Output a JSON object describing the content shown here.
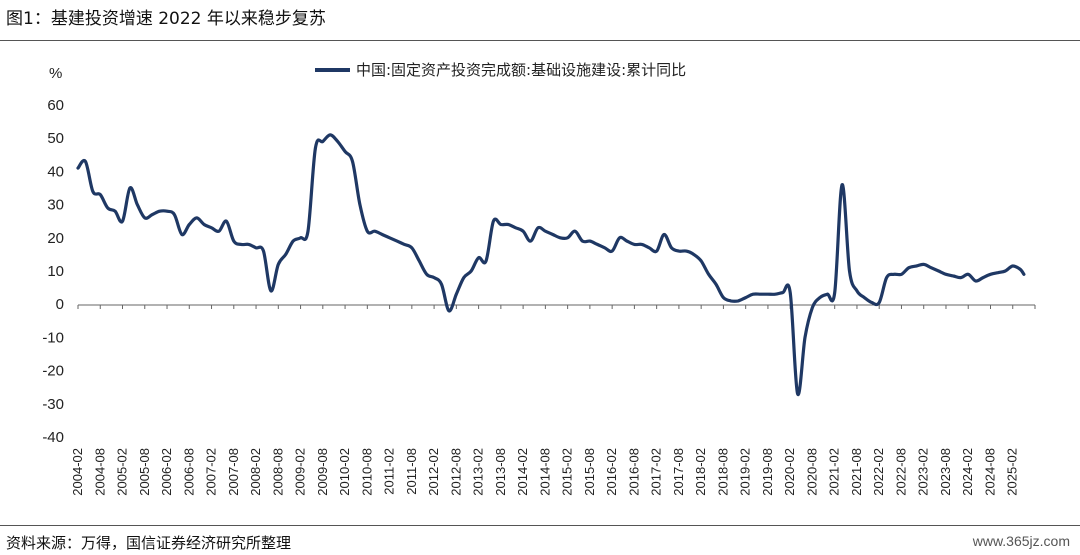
{
  "title": "图1：基建投资增速 2022 年以来稳步复苏",
  "source": "资料来源：万得，国信证券经济研究所整理",
  "watermark": "www.365jz.com",
  "chart_data": {
    "type": "line",
    "unit": "%",
    "ylim": [
      -40,
      60
    ],
    "yticks": [
      60,
      50,
      40,
      30,
      20,
      10,
      0,
      -10,
      -20,
      -30,
      -40
    ],
    "xticks": [
      "2004-02",
      "2004-08",
      "2005-02",
      "2005-08",
      "2006-02",
      "2006-08",
      "2007-02",
      "2007-08",
      "2008-02",
      "2008-08",
      "2009-02",
      "2009-08",
      "2010-02",
      "2010-08",
      "2011-02",
      "2011-08",
      "2012-02",
      "2012-08",
      "2013-02",
      "2013-08",
      "2014-02",
      "2014-08",
      "2015-02",
      "2015-08",
      "2016-02",
      "2016-08",
      "2017-02",
      "2017-08",
      "2018-02",
      "2018-08",
      "2019-02",
      "2019-08",
      "2020-02",
      "2020-08",
      "2021-02",
      "2021-08",
      "2022-02",
      "2022-08",
      "2023-02",
      "2023-08",
      "2024-02",
      "2024-08",
      "2025-02"
    ],
    "legend_position": "top-center",
    "grid": false,
    "colors": {
      "line": "#1f3864"
    },
    "series": [
      {
        "name": "中国:固定资产投资完成额:基础设施建设:累计同比",
        "points": [
          [
            "2004-02",
            41
          ],
          [
            "2004-04",
            43
          ],
          [
            "2004-06",
            34
          ],
          [
            "2004-08",
            33
          ],
          [
            "2004-10",
            29
          ],
          [
            "2004-12",
            28
          ],
          [
            "2005-02",
            25
          ],
          [
            "2005-04",
            35
          ],
          [
            "2005-06",
            30
          ],
          [
            "2005-08",
            26
          ],
          [
            "2005-10",
            27
          ],
          [
            "2005-12",
            28
          ],
          [
            "2006-02",
            28
          ],
          [
            "2006-04",
            27
          ],
          [
            "2006-06",
            21
          ],
          [
            "2006-08",
            24
          ],
          [
            "2006-10",
            26
          ],
          [
            "2006-12",
            24
          ],
          [
            "2007-02",
            23
          ],
          [
            "2007-04",
            22
          ],
          [
            "2007-06",
            25
          ],
          [
            "2007-08",
            19
          ],
          [
            "2007-10",
            18
          ],
          [
            "2007-12",
            18
          ],
          [
            "2008-02",
            17
          ],
          [
            "2008-04",
            16
          ],
          [
            "2008-06",
            4
          ],
          [
            "2008-08",
            12
          ],
          [
            "2008-10",
            15
          ],
          [
            "2008-12",
            19
          ],
          [
            "2009-02",
            20
          ],
          [
            "2009-04",
            22
          ],
          [
            "2009-06",
            47
          ],
          [
            "2009-08",
            49
          ],
          [
            "2009-10",
            51
          ],
          [
            "2009-12",
            49
          ],
          [
            "2010-02",
            46
          ],
          [
            "2010-04",
            43
          ],
          [
            "2010-06",
            30
          ],
          [
            "2010-08",
            22
          ],
          [
            "2010-10",
            22
          ],
          [
            "2010-12",
            21
          ],
          [
            "2011-02",
            20
          ],
          [
            "2011-04",
            19
          ],
          [
            "2011-06",
            18
          ],
          [
            "2011-08",
            17
          ],
          [
            "2011-10",
            13
          ],
          [
            "2011-12",
            9
          ],
          [
            "2012-02",
            8
          ],
          [
            "2012-04",
            6
          ],
          [
            "2012-06",
            -2
          ],
          [
            "2012-08",
            3
          ],
          [
            "2012-10",
            8
          ],
          [
            "2012-12",
            10
          ],
          [
            "2013-02",
            14
          ],
          [
            "2013-04",
            13
          ],
          [
            "2013-06",
            25
          ],
          [
            "2013-08",
            24
          ],
          [
            "2013-10",
            24
          ],
          [
            "2013-12",
            23
          ],
          [
            "2014-02",
            22
          ],
          [
            "2014-04",
            19
          ],
          [
            "2014-06",
            23
          ],
          [
            "2014-08",
            22
          ],
          [
            "2014-10",
            21
          ],
          [
            "2014-12",
            20
          ],
          [
            "2015-02",
            20
          ],
          [
            "2015-04",
            22
          ],
          [
            "2015-06",
            19
          ],
          [
            "2015-08",
            19
          ],
          [
            "2015-10",
            18
          ],
          [
            "2015-12",
            17
          ],
          [
            "2016-02",
            16
          ],
          [
            "2016-04",
            20
          ],
          [
            "2016-06",
            19
          ],
          [
            "2016-08",
            18
          ],
          [
            "2016-10",
            18
          ],
          [
            "2016-12",
            17
          ],
          [
            "2017-02",
            16
          ],
          [
            "2017-04",
            21
          ],
          [
            "2017-06",
            17
          ],
          [
            "2017-08",
            16
          ],
          [
            "2017-10",
            16
          ],
          [
            "2017-12",
            15
          ],
          [
            "2018-02",
            13
          ],
          [
            "2018-04",
            9
          ],
          [
            "2018-06",
            6
          ],
          [
            "2018-08",
            2
          ],
          [
            "2018-10",
            1
          ],
          [
            "2018-12",
            1
          ],
          [
            "2019-02",
            2
          ],
          [
            "2019-04",
            3
          ],
          [
            "2019-06",
            3
          ],
          [
            "2019-08",
            3
          ],
          [
            "2019-10",
            3
          ],
          [
            "2019-12",
            3.5
          ],
          [
            "2020-02",
            3.5
          ],
          [
            "2020-04",
            -27
          ],
          [
            "2020-06",
            -10
          ],
          [
            "2020-08",
            -1
          ],
          [
            "2020-10",
            2
          ],
          [
            "2020-12",
            3
          ],
          [
            "2021-02",
            3.5
          ],
          [
            "2021-04",
            36
          ],
          [
            "2021-06",
            10
          ],
          [
            "2021-08",
            4
          ],
          [
            "2021-10",
            2
          ],
          [
            "2021-12",
            0.5
          ],
          [
            "2022-02",
            0.5
          ],
          [
            "2022-04",
            8
          ],
          [
            "2022-06",
            9
          ],
          [
            "2022-08",
            9
          ],
          [
            "2022-10",
            11
          ],
          [
            "2022-12",
            11.5
          ],
          [
            "2023-02",
            12
          ],
          [
            "2023-04",
            11
          ],
          [
            "2023-06",
            10
          ],
          [
            "2023-08",
            9
          ],
          [
            "2023-10",
            8.5
          ],
          [
            "2023-12",
            8
          ],
          [
            "2024-02",
            9
          ],
          [
            "2024-04",
            7
          ],
          [
            "2024-06",
            8
          ],
          [
            "2024-08",
            9
          ],
          [
            "2024-10",
            9.5
          ],
          [
            "2024-12",
            10
          ],
          [
            "2025-02",
            11.5
          ],
          [
            "2025-04",
            10.5
          ],
          [
            "2025-05",
            9
          ]
        ]
      }
    ]
  }
}
